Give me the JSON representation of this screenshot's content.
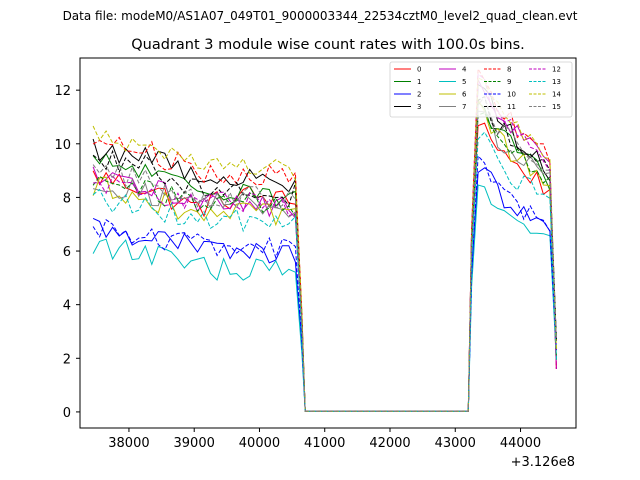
{
  "suptitle": "Data file: modeM0/AS1A07_049T01_9000003344_22534cztM0_level2_quad_clean.evt",
  "chart_data": {
    "type": "line",
    "title": "Quadrant 3 module wise count rates with 100.0s bins.",
    "xlabel": "",
    "ylabel": "",
    "x_offset_label": "+3.126e8",
    "xlim": [
      37250,
      44850
    ],
    "ylim": [
      -0.6,
      13.2
    ],
    "xticks": [
      38000,
      39000,
      40000,
      41000,
      42000,
      43000,
      44000
    ],
    "xtick_labels": [
      "38000",
      "39000",
      "40000",
      "41000",
      "42000",
      "43000",
      "44000"
    ],
    "yticks": [
      0,
      2,
      4,
      6,
      8,
      10,
      12
    ],
    "ytick_labels": [
      "0",
      "2",
      "4",
      "6",
      "8",
      "10",
      "12"
    ],
    "legend_position": "top-right",
    "series": [
      {
        "name": "0",
        "color": "#ff0000",
        "dash": "solid",
        "pre": [
          8.8,
          8.4,
          7.6,
          8.1,
          7.8
        ],
        "post": [
          11.0,
          10.0,
          9.2,
          8.8,
          8.2
        ]
      },
      {
        "name": "1",
        "color": "#008000",
        "dash": "solid",
        "pre": [
          9.3,
          9.0,
          8.2,
          8.4,
          7.9
        ],
        "post": [
          11.5,
          10.6,
          9.8,
          9.3,
          8.6
        ]
      },
      {
        "name": "2",
        "color": "#0000ff",
        "dash": "solid",
        "pre": [
          6.9,
          6.6,
          6.1,
          6.0,
          5.8
        ],
        "post": [
          9.3,
          8.3,
          7.6,
          7.1,
          6.7
        ]
      },
      {
        "name": "3",
        "color": "#000000",
        "dash": "solid",
        "pre": [
          9.8,
          9.6,
          8.9,
          8.7,
          8.5
        ],
        "post": [
          12.2,
          11.3,
          10.3,
          9.7,
          9.0
        ]
      },
      {
        "name": "4",
        "color": "#bf00bf",
        "dash": "solid",
        "pre": [
          8.7,
          8.4,
          7.9,
          7.8,
          7.6
        ],
        "post": [
          12.0,
          11.2,
          10.5,
          9.9,
          9.3
        ]
      },
      {
        "name": "5",
        "color": "#00bfbf",
        "dash": "solid",
        "pre": [
          6.3,
          5.9,
          5.4,
          5.3,
          5.2
        ],
        "post": [
          8.5,
          7.6,
          7.1,
          6.6,
          6.2
        ]
      },
      {
        "name": "6",
        "color": "#bfbf00",
        "dash": "solid",
        "pre": [
          8.4,
          8.1,
          7.3,
          7.4,
          7.2
        ],
        "post": [
          11.3,
          10.4,
          9.5,
          9.0,
          8.5
        ]
      },
      {
        "name": "7",
        "color": "#808080",
        "dash": "solid",
        "pre": [
          8.6,
          8.2,
          7.8,
          7.9,
          7.6
        ],
        "post": [
          11.3,
          10.3,
          9.6,
          9.2,
          8.6
        ]
      },
      {
        "name": "8",
        "color": "#ff0000",
        "dash": "dashed",
        "pre": [
          10.2,
          9.8,
          9.0,
          8.9,
          8.7
        ],
        "post": [
          12.5,
          11.4,
          10.7,
          10.1,
          9.4
        ]
      },
      {
        "name": "9",
        "color": "#008000",
        "dash": "dashed",
        "pre": [
          8.6,
          8.3,
          7.8,
          7.8,
          7.6
        ],
        "post": [
          11.2,
          10.3,
          9.6,
          9.1,
          8.5
        ]
      },
      {
        "name": "10",
        "color": "#0000ff",
        "dash": "dashed",
        "pre": [
          7.0,
          6.6,
          6.2,
          6.2,
          6.1
        ],
        "post": [
          9.3,
          8.4,
          7.8,
          7.3,
          6.9
        ]
      },
      {
        "name": "11",
        "color": "#000000",
        "dash": "dashed",
        "pre": [
          9.6,
          9.2,
          8.4,
          8.3,
          8.1
        ],
        "post": [
          11.8,
          10.8,
          10.0,
          9.5,
          8.8
        ]
      },
      {
        "name": "12",
        "color": "#bf00bf",
        "dash": "dashed",
        "pre": [
          8.5,
          8.2,
          7.8,
          7.8,
          7.5
        ],
        "post": [
          12.4,
          11.5,
          10.6,
          10.0,
          9.2
        ]
      },
      {
        "name": "13",
        "color": "#00bfbf",
        "dash": "dashed",
        "pre": [
          8.0,
          7.6,
          7.1,
          7.2,
          7.0
        ],
        "post": [
          10.4,
          9.5,
          8.7,
          8.3,
          7.8
        ]
      },
      {
        "name": "14",
        "color": "#bfbf00",
        "dash": "dashed",
        "pre": [
          10.5,
          10.0,
          9.3,
          9.1,
          8.9
        ],
        "post": [
          12.3,
          11.4,
          10.6,
          10.2,
          9.7
        ]
      },
      {
        "name": "15",
        "color": "#808080",
        "dash": "dashed",
        "pre": [
          9.0,
          8.6,
          8.0,
          8.0,
          7.8
        ],
        "post": [
          11.7,
          10.8,
          10.0,
          9.5,
          8.9
        ]
      }
    ]
  }
}
